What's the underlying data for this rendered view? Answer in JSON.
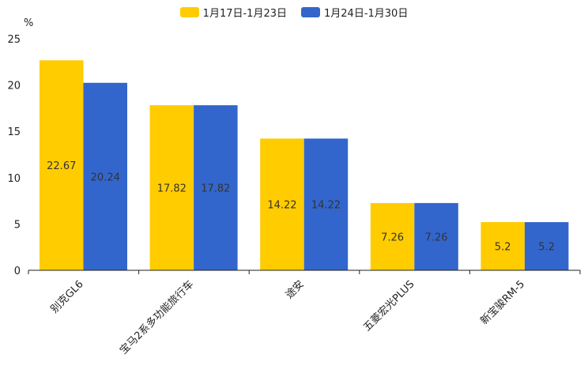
{
  "chart_data": {
    "type": "bar",
    "title": "",
    "ylabel": "%",
    "xlabel": "",
    "ylim": [
      0,
      25
    ],
    "yticks": [
      0,
      5,
      10,
      15,
      20,
      25
    ],
    "categories": [
      "别克GL6",
      "宝马2系多功能旅行车",
      "途安",
      "五菱宏光PLUS",
      "新宝骏RM-5"
    ],
    "series": [
      {
        "name": "1月17日-1月23日",
        "color": "#FFCC00",
        "values": [
          22.67,
          17.82,
          14.22,
          7.26,
          5.2
        ]
      },
      {
        "name": "1月24日-1月30日",
        "color": "#3366CC",
        "values": [
          20.24,
          17.82,
          14.22,
          7.26,
          5.2
        ]
      }
    ],
    "legend_position": "top-center"
  }
}
